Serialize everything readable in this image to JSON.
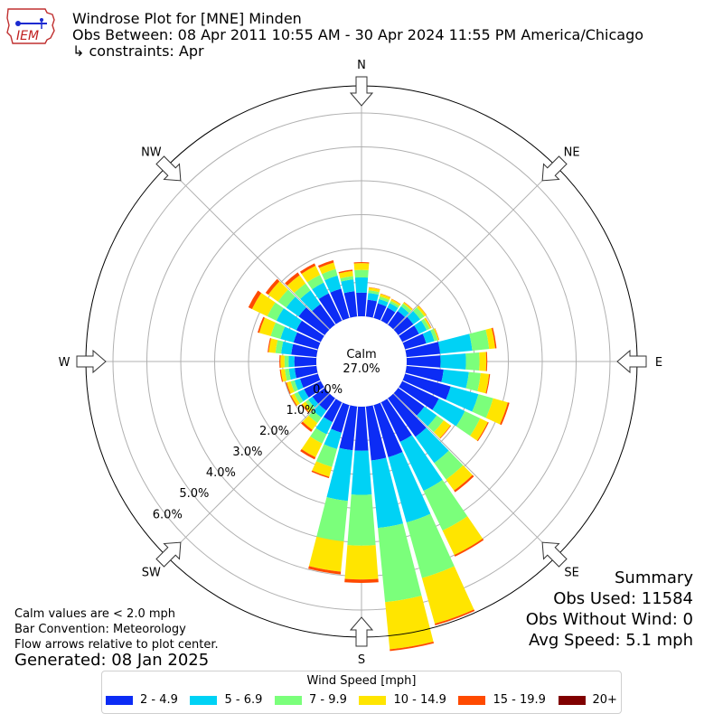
{
  "header": {
    "title": "Windrose Plot for [MNE] Minden",
    "period": "Obs Between: 08 Apr 2011 10:55 AM - 30 Apr 2024 11:55 PM America/Chicago",
    "constraints": "↳ constraints: Apr"
  },
  "logo": {
    "text": "IEM",
    "icon": "iem-logo-icon"
  },
  "notes": {
    "calm_def": "Calm values are < 2.0 mph",
    "bar_convention": "Bar Convention: Meteorology",
    "flow_arrows": "Flow arrows relative to plot center.",
    "generated": "Generated: 08 Jan 2025"
  },
  "summary": {
    "title": "Summary",
    "obs_used": "Obs Used: 11584",
    "obs_without_wind": "Obs Without Wind: 0",
    "avg_speed": "Avg Speed: 5.1 mph"
  },
  "chart_data": {
    "type": "windrose",
    "calm_label": "Calm",
    "calm_value": "27.0%",
    "directions": [
      "N",
      "NE",
      "E",
      "SE",
      "S",
      "SW",
      "W",
      "NW"
    ],
    "radial_ticks": [
      "0.0%",
      "1.0%",
      "2.0%",
      "3.0%",
      "4.0%",
      "5.0%",
      "6.0%"
    ],
    "radial_values": [
      0,
      1,
      2,
      3,
      4,
      5,
      6
    ],
    "rmax": 6.8,
    "legend_title": "Wind Speed [mph]",
    "bins": [
      {
        "label": "2 - 4.9",
        "color": "#0c2cf5"
      },
      {
        "label": "5 - 6.9",
        "color": "#00d2f5"
      },
      {
        "label": "7 - 9.9",
        "color": "#7bff7b"
      },
      {
        "label": "10 - 14.9",
        "color": "#ffe500"
      },
      {
        "label": "15 - 19.9",
        "color": "#ff4a00"
      },
      {
        "label": "20+",
        "color": "#800000"
      }
    ],
    "sector_width_deg": 10,
    "sectors": [
      {
        "dir": 0,
        "values": [
          0.7,
          0.45,
          0.22,
          0.2,
          0.03,
          0
        ]
      },
      {
        "dir": 10,
        "values": [
          0.5,
          0.2,
          0.08,
          0.08,
          0.01,
          0
        ]
      },
      {
        "dir": 20,
        "values": [
          0.45,
          0.13,
          0.08,
          0.08,
          0.01,
          0
        ]
      },
      {
        "dir": 30,
        "values": [
          0.43,
          0.15,
          0.07,
          0.06,
          0.01,
          0
        ]
      },
      {
        "dir": 40,
        "values": [
          0.5,
          0.17,
          0.1,
          0.05,
          0.01,
          0
        ]
      },
      {
        "dir": 50,
        "values": [
          0.55,
          0.25,
          0.15,
          0.07,
          0.01,
          0
        ]
      },
      {
        "dir": 60,
        "values": [
          0.55,
          0.25,
          0.1,
          0.05,
          0.01,
          0
        ]
      },
      {
        "dir": 70,
        "values": [
          0.65,
          0.25,
          0.1,
          0.04,
          0.01,
          0
        ]
      },
      {
        "dir": 80,
        "values": [
          1.0,
          0.95,
          0.5,
          0.18,
          0.04,
          0
        ]
      },
      {
        "dir": 90,
        "values": [
          1.0,
          0.75,
          0.4,
          0.2,
          0.03,
          0
        ]
      },
      {
        "dir": 100,
        "values": [
          1.1,
          0.75,
          0.35,
          0.25,
          0.03,
          0
        ]
      },
      {
        "dir": 110,
        "values": [
          1.4,
          0.85,
          0.45,
          0.45,
          0.05,
          0
        ]
      },
      {
        "dir": 120,
        "values": [
          1.2,
          0.85,
          0.5,
          0.25,
          0.03,
          0
        ]
      },
      {
        "dir": 130,
        "values": [
          0.95,
          0.45,
          0.25,
          0.25,
          0.02,
          0
        ]
      },
      {
        "dir": 140,
        "values": [
          1.4,
          0.95,
          0.6,
          0.4,
          0.06,
          0
        ]
      },
      {
        "dir": 150,
        "values": [
          1.3,
          1.6,
          1.3,
          0.8,
          0.05,
          0
        ]
      },
      {
        "dir": 160,
        "values": [
          1.6,
          2.0,
          1.7,
          1.4,
          0.05,
          0
        ]
      },
      {
        "dir": 170,
        "values": [
          1.6,
          2.0,
          2.2,
          1.4,
          0.05,
          0
        ]
      },
      {
        "dir": 180,
        "values": [
          1.3,
          1.3,
          1.5,
          1.0,
          0.1,
          0
        ]
      },
      {
        "dir": 190,
        "values": [
          1.3,
          1.5,
          1.2,
          0.9,
          0.08,
          0
        ]
      },
      {
        "dir": 200,
        "values": [
          0.85,
          0.5,
          0.55,
          0.3,
          0.04,
          0
        ]
      },
      {
        "dir": 210,
        "values": [
          0.65,
          0.4,
          0.3,
          0.45,
          0.07,
          0
        ]
      },
      {
        "dir": 220,
        "values": [
          0.45,
          0.25,
          0.2,
          0.25,
          0.07,
          0
        ]
      },
      {
        "dir": 230,
        "values": [
          0.45,
          0.15,
          0.1,
          0.12,
          0.03,
          0
        ]
      },
      {
        "dir": 240,
        "values": [
          0.55,
          0.2,
          0.12,
          0.1,
          0.03,
          0
        ]
      },
      {
        "dir": 250,
        "values": [
          0.55,
          0.17,
          0.12,
          0.12,
          0.03,
          0
        ]
      },
      {
        "dir": 260,
        "values": [
          0.65,
          0.17,
          0.12,
          0.12,
          0.03,
          0
        ]
      },
      {
        "dir": 270,
        "values": [
          0.65,
          0.17,
          0.12,
          0.12,
          0.03,
          0
        ]
      },
      {
        "dir": 280,
        "values": [
          0.75,
          0.3,
          0.17,
          0.2,
          0.03,
          0
        ]
      },
      {
        "dir": 290,
        "values": [
          0.75,
          0.4,
          0.3,
          0.35,
          0.05,
          0
        ]
      },
      {
        "dir": 300,
        "values": [
          0.8,
          0.65,
          0.3,
          0.5,
          0.12,
          0
        ]
      },
      {
        "dir": 310,
        "values": [
          0.95,
          0.45,
          0.3,
          0.35,
          0.1,
          0
        ]
      },
      {
        "dir": 320,
        "values": [
          0.75,
          0.5,
          0.25,
          0.3,
          0.1,
          0
        ]
      },
      {
        "dir": 330,
        "values": [
          0.9,
          0.35,
          0.25,
          0.3,
          0.08,
          0
        ]
      },
      {
        "dir": 340,
        "values": [
          0.9,
          0.4,
          0.2,
          0.2,
          0.07,
          0
        ]
      },
      {
        "dir": 350,
        "values": [
          0.75,
          0.35,
          0.1,
          0.15,
          0.04,
          0
        ]
      }
    ]
  }
}
